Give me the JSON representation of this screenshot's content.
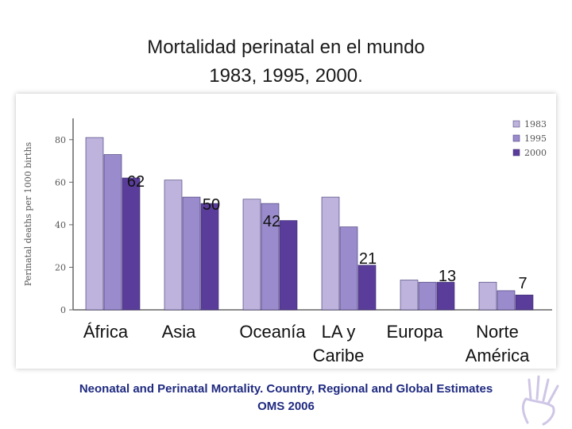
{
  "title_line1": "Mortalidad perinatal en el mundo",
  "title_line2": "1983, 1995, 2000.",
  "footer_line1": "Neonatal and Perinatal Mortality. Country, Regional and Global Estimates",
  "footer_line2": "OMS 2006",
  "colors": {
    "s1983": "#bdb3dc",
    "s1995": "#9a8ccc",
    "s2000": "#5a3d9a",
    "axis": "#666666"
  },
  "chart_data": {
    "type": "bar",
    "title": "Mortalidad perinatal en el mundo 1983, 1995, 2000.",
    "ylabel": "Perinatal deaths per 1000 births",
    "ylim": [
      0,
      90
    ],
    "yticks": [
      0,
      20,
      40,
      60,
      80
    ],
    "legend_position": "top-right",
    "categories": [
      "África",
      "Asia",
      "Oceanía",
      "LA y Caribe",
      "Europa",
      "Norte América"
    ],
    "category_lines": [
      [
        "África"
      ],
      [
        "Asia"
      ],
      [
        "Oceanía"
      ],
      [
        "LA y",
        "Caribe"
      ],
      [
        "Europa"
      ],
      [
        "Norte",
        "América"
      ]
    ],
    "series": [
      {
        "name": "1983",
        "values": [
          81,
          61,
          52,
          53,
          14,
          13
        ]
      },
      {
        "name": "1995",
        "values": [
          73,
          53,
          50,
          39,
          13,
          9
        ]
      },
      {
        "name": "2000",
        "values": [
          62,
          50,
          42,
          21,
          13,
          7
        ]
      }
    ],
    "data_labels": [
      "62",
      "50",
      "42",
      "21",
      "13",
      "7"
    ]
  }
}
